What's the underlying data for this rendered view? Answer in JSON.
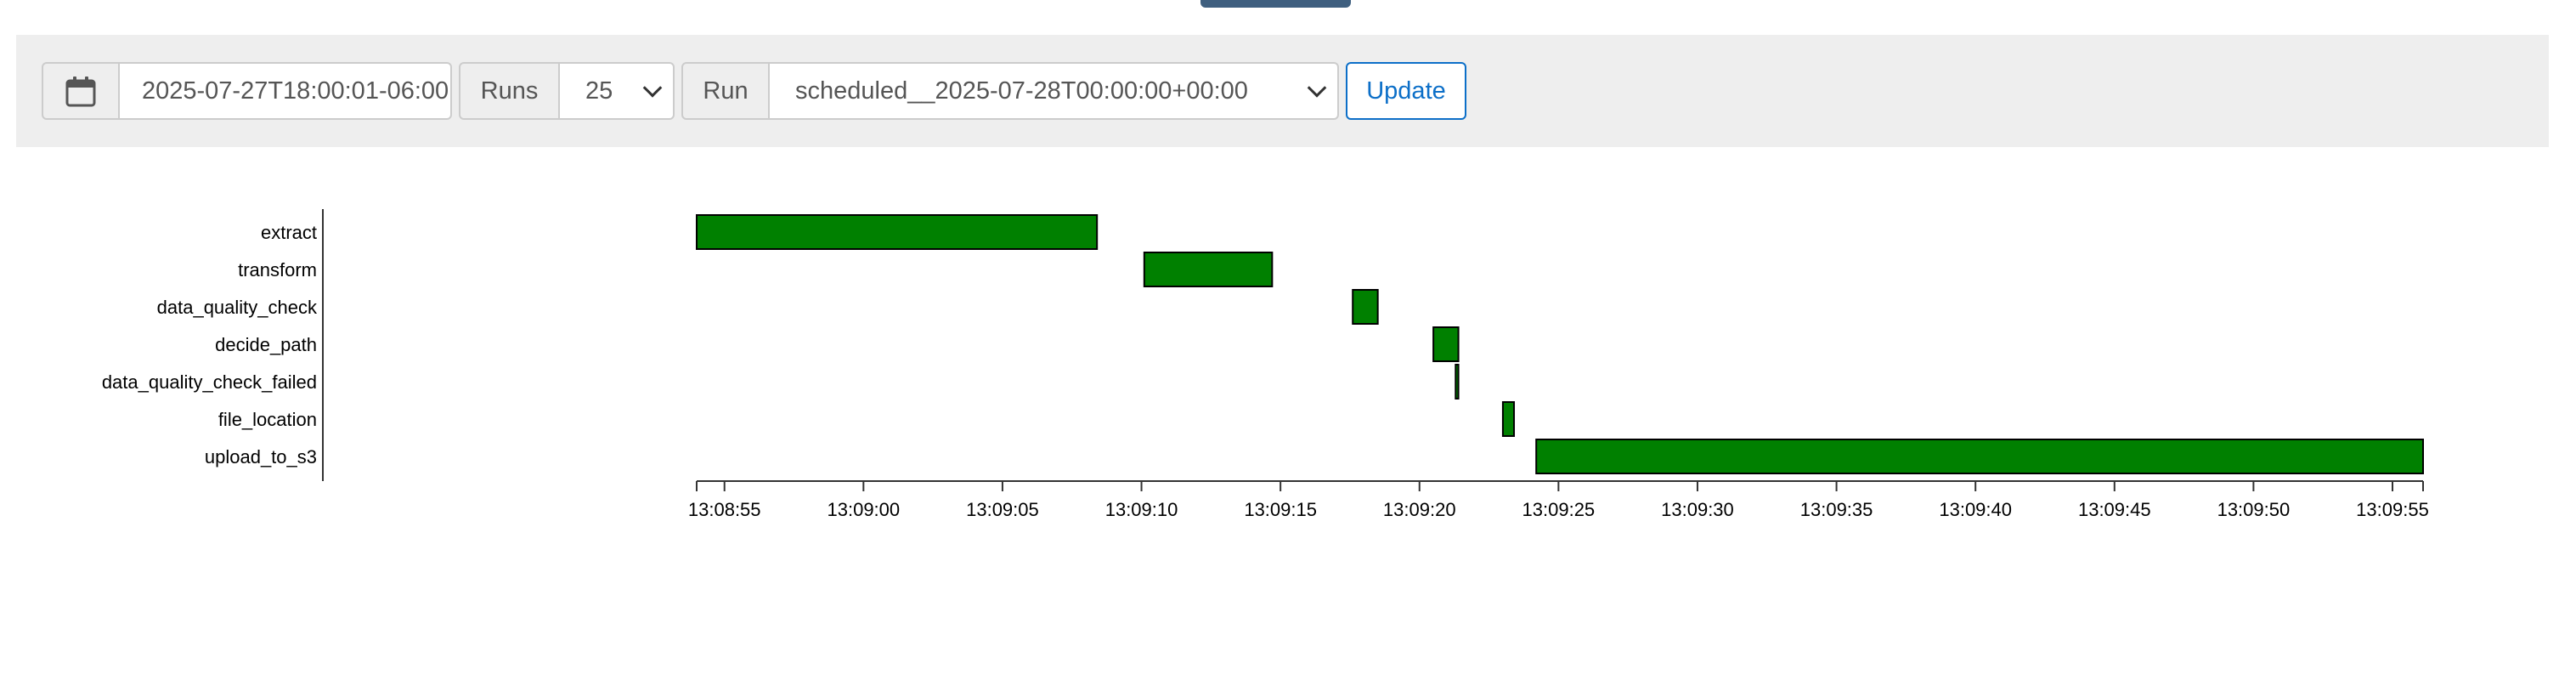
{
  "toolbar": {
    "calendar_icon": "calendar-icon",
    "base_date": "2025-07-27T18:00:01-06:00",
    "runs_label": "Runs",
    "runs_value": "25",
    "run_label": "Run",
    "run_value": "scheduled__2025-07-28T00:00:00+00:00",
    "update_label": "Update"
  },
  "colors": {
    "bar_fill": "#008000",
    "accent": "#0c6fc8",
    "toolbar_bg": "#eeeeee"
  },
  "chart_data": {
    "type": "gantt",
    "tasks": [
      {
        "name": "extract",
        "start": "13:08:54.0",
        "end": "13:09:08.4"
      },
      {
        "name": "transform",
        "start": "13:09:10.1",
        "end": "13:09:14.7"
      },
      {
        "name": "data_quality_check",
        "start": "13:09:17.6",
        "end": "13:09:18.5"
      },
      {
        "name": "decide_path",
        "start": "13:09:20.5",
        "end": "13:09:21.4"
      },
      {
        "name": "data_quality_check_failed",
        "start": "13:09:21.3",
        "end": "13:09:21.4"
      },
      {
        "name": "file_location",
        "start": "13:09:23.0",
        "end": "13:09:23.4"
      },
      {
        "name": "upload_to_s3",
        "start": "13:09:24.2",
        "end": "13:09:56.1"
      }
    ],
    "x_ticks": [
      "13:08:55",
      "13:09:00",
      "13:09:05",
      "13:09:10",
      "13:09:15",
      "13:09:20",
      "13:09:25",
      "13:09:30",
      "13:09:35",
      "13:09:40",
      "13:09:45",
      "13:09:50",
      "13:09:55"
    ],
    "x_range": [
      "13:08:54",
      "13:09:56.1"
    ]
  }
}
